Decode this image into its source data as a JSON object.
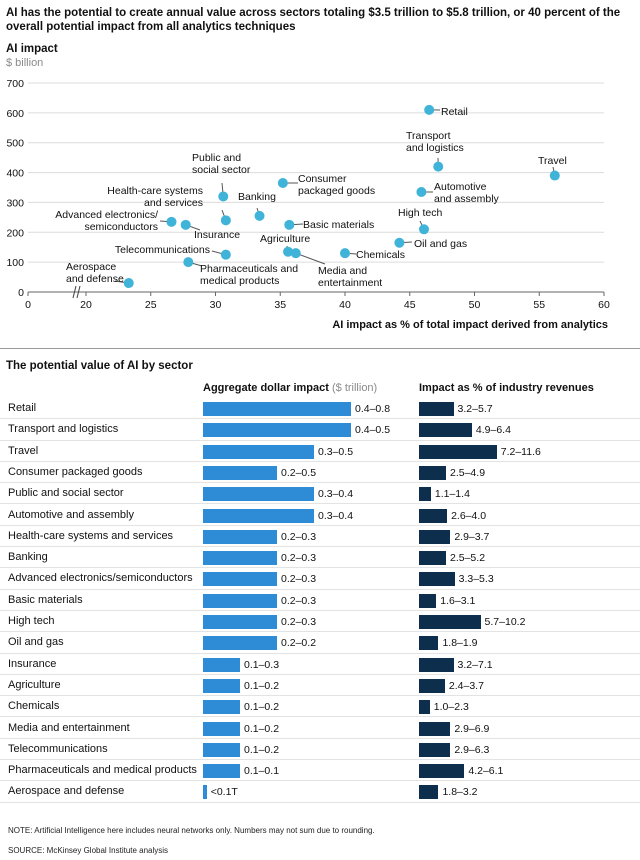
{
  "headline": "AI has the potential to create annual value across sectors totaling $3.5 trillion to $5.8 trillion, or 40 percent of the overall potential impact from all analytics techniques",
  "colors": {
    "dot": "#3fb3d8",
    "aggregate_bar": "#2e8bd6",
    "revenue_bar": "#0e2e4e"
  },
  "chart_data": [
    {
      "type": "scatter",
      "ylabel": "AI impact",
      "yunit": "$ billion",
      "xlabel": "AI impact as % of total impact derived from analytics",
      "xlim": [
        0,
        60
      ],
      "ylim": [
        0,
        700
      ],
      "xticks": [
        "0",
        "20",
        "25",
        "30",
        "35",
        "40",
        "45",
        "50",
        "55",
        "60"
      ],
      "yticks": [
        "0",
        "100",
        "200",
        "300",
        "400",
        "500",
        "600",
        "700"
      ],
      "axis_break": true,
      "points": [
        {
          "label": "Retail",
          "x": 46.5,
          "y": 610
        },
        {
          "label": "Transport and logistics",
          "x": 47.2,
          "y": 420
        },
        {
          "label": "Travel",
          "x": 56.2,
          "y": 390
        },
        {
          "label": "Automotive and assembly",
          "x": 45.9,
          "y": 335
        },
        {
          "label": "Consumer packaged goods",
          "x": 35.2,
          "y": 365
        },
        {
          "label": "Public and social sector",
          "x": 30.6,
          "y": 320
        },
        {
          "label": "Banking",
          "x": 33.4,
          "y": 255
        },
        {
          "label": "Health-care systems and services",
          "x": 30.8,
          "y": 240
        },
        {
          "label": "Basic materials",
          "x": 35.7,
          "y": 225
        },
        {
          "label": "Advanced electronics/semiconductors",
          "x": 26.6,
          "y": 235
        },
        {
          "label": "Insurance",
          "x": 27.7,
          "y": 225
        },
        {
          "label": "High tech",
          "x": 46.1,
          "y": 210
        },
        {
          "label": "Oil and gas",
          "x": 44.2,
          "y": 165
        },
        {
          "label": "Agriculture",
          "x": 35.6,
          "y": 135
        },
        {
          "label": "Media and entertainment",
          "x": 36.2,
          "y": 130
        },
        {
          "label": "Chemicals",
          "x": 40.0,
          "y": 130
        },
        {
          "label": "Telecommunications",
          "x": 30.8,
          "y": 125
        },
        {
          "label": "Pharmaceuticals and medical products",
          "x": 27.9,
          "y": 100
        },
        {
          "label": "Aerospace and defense",
          "x": 23.3,
          "y": 30
        }
      ]
    },
    {
      "type": "bar",
      "title": "The potential value of AI by sector",
      "series": [
        {
          "name": "Aggregate dollar impact",
          "unit": "$ trillion",
          "low": [
            0.4,
            0.4,
            0.3,
            0.2,
            0.3,
            0.3,
            0.2,
            0.2,
            0.2,
            0.2,
            0.2,
            0.2,
            0.1,
            0.1,
            0.1,
            0.1,
            0.1,
            0.1,
            0.0
          ],
          "high": [
            0.8,
            0.5,
            0.5,
            0.5,
            0.4,
            0.4,
            0.3,
            0.3,
            0.3,
            0.3,
            0.3,
            0.2,
            0.3,
            0.2,
            0.2,
            0.2,
            0.2,
            0.1,
            0.1
          ]
        },
        {
          "name": "Impact as % of industry revenues",
          "low": [
            3.2,
            4.9,
            7.2,
            2.5,
            1.1,
            2.6,
            2.9,
            2.5,
            3.3,
            1.6,
            5.7,
            1.8,
            3.2,
            2.4,
            1.0,
            2.9,
            2.9,
            4.2,
            1.8
          ],
          "high": [
            5.7,
            6.4,
            11.6,
            4.9,
            1.4,
            4.0,
            3.7,
            5.2,
            5.3,
            3.1,
            10.2,
            1.9,
            7.1,
            3.7,
            2.3,
            6.9,
            6.3,
            6.1,
            3.2
          ]
        }
      ]
    }
  ],
  "bar_section": {
    "title": "The potential value of AI by sector",
    "col1_title": "Aggregate dollar impact",
    "col1_unit": "($ trillion)",
    "col2_title": "Impact as % of industry revenues",
    "rows": [
      {
        "label": "Retail",
        "agg_text": "0.4–0.8",
        "agg_value": 0.4,
        "rev_text": "3.2–5.7",
        "rev_value": 3.2
      },
      {
        "label": "Transport and logistics",
        "agg_text": "0.4–0.5",
        "agg_value": 0.4,
        "rev_text": "4.9–6.4",
        "rev_value": 4.9
      },
      {
        "label": "Travel",
        "agg_text": "0.3–0.5",
        "agg_value": 0.3,
        "rev_text": "7.2–11.6",
        "rev_value": 7.2
      },
      {
        "label": "Consumer packaged goods",
        "agg_text": "0.2–0.5",
        "agg_value": 0.2,
        "rev_text": "2.5–4.9",
        "rev_value": 2.5
      },
      {
        "label": "Public and social sector",
        "agg_text": "0.3–0.4",
        "agg_value": 0.3,
        "rev_text": "1.1–1.4",
        "rev_value": 1.1
      },
      {
        "label": "Automotive and assembly",
        "agg_text": "0.3–0.4",
        "agg_value": 0.3,
        "rev_text": "2.6–4.0",
        "rev_value": 2.6
      },
      {
        "label": "Health-care systems and services",
        "agg_text": "0.2–0.3",
        "agg_value": 0.2,
        "rev_text": "2.9–3.7",
        "rev_value": 2.9
      },
      {
        "label": "Banking",
        "agg_text": "0.2–0.3",
        "agg_value": 0.2,
        "rev_text": "2.5–5.2",
        "rev_value": 2.5
      },
      {
        "label": "Advanced electronics/semiconductors",
        "agg_text": "0.2–0.3",
        "agg_value": 0.2,
        "rev_text": "3.3–5.3",
        "rev_value": 3.3
      },
      {
        "label": "Basic materials",
        "agg_text": "0.2–0.3",
        "agg_value": 0.2,
        "rev_text": "1.6–3.1",
        "rev_value": 1.6
      },
      {
        "label": "High tech",
        "agg_text": "0.2–0.3",
        "agg_value": 0.2,
        "rev_text": "5.7–10.2",
        "rev_value": 5.7
      },
      {
        "label": "Oil and gas",
        "agg_text": "0.2–0.2",
        "agg_value": 0.2,
        "rev_text": "1.8–1.9",
        "rev_value": 1.8
      },
      {
        "label": "Insurance",
        "agg_text": "0.1–0.3",
        "agg_value": 0.1,
        "rev_text": "3.2–7.1",
        "rev_value": 3.2
      },
      {
        "label": "Agriculture",
        "agg_text": "0.1–0.2",
        "agg_value": 0.1,
        "rev_text": "2.4–3.7",
        "rev_value": 2.4
      },
      {
        "label": "Chemicals",
        "agg_text": "0.1–0.2",
        "agg_value": 0.1,
        "rev_text": "1.0–2.3",
        "rev_value": 1.0
      },
      {
        "label": "Media and entertainment",
        "agg_text": "0.1–0.2",
        "agg_value": 0.1,
        "rev_text": "2.9–6.9",
        "rev_value": 2.9
      },
      {
        "label": "Telecommunications",
        "agg_text": "0.1–0.2",
        "agg_value": 0.1,
        "rev_text": "2.9–6.3",
        "rev_value": 2.9
      },
      {
        "label": "Pharmaceuticals and medical products",
        "agg_text": "0.1–0.1",
        "agg_value": 0.1,
        "rev_text": "4.2–6.1",
        "rev_value": 4.2
      },
      {
        "label": "Aerospace and defense",
        "agg_text": "<0.1T",
        "agg_value": 0.01,
        "rev_text": "1.8–3.2",
        "rev_value": 1.8
      }
    ]
  },
  "note": "NOTE: Artificial Intelligence here includes neural networks only. Numbers may not sum due to rounding.",
  "source": "SOURCE:  McKinsey Global Institute analysis"
}
